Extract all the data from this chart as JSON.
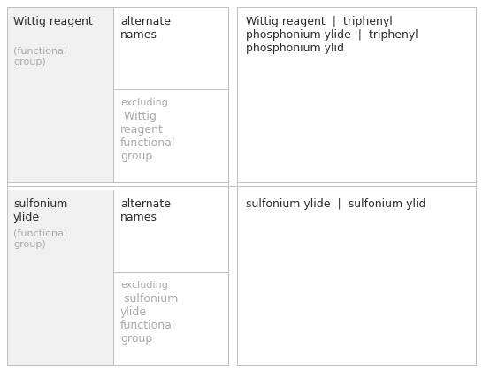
{
  "rows": [
    {
      "col1_main": "Wittig reagent",
      "col1_sub": "(functional\ngroup)",
      "col2_top": "alternate\nnames",
      "col2_bot_label": "excluding",
      "col2_bot_text": " Wittig\nreagent\nfunctional\ngroup",
      "col3_text": "Wittig reagent  |  triphenyl\nphosphonium ylide  |  triphenyl\nphosphonium ylid"
    },
    {
      "col1_main": "sulfonium\nylide",
      "col1_sub": "(functional\ngroup)",
      "col2_top": "alternate\nnames",
      "col2_bot_label": "excluding",
      "col2_bot_text": " sulfonium\nylide\nfunctional\ngroup",
      "col3_text": "sulfonium ylide  |  sulfonium ylid"
    }
  ],
  "bg_col1": "#f0f0f0",
  "bg_white": "#ffffff",
  "border_color": "#c0c0c0",
  "text_dark": "#2a2a2a",
  "text_gray": "#aaaaaa",
  "col3_text_color": "#2a2a2a",
  "figw": 5.46,
  "figh": 4.2,
  "dpi": 100
}
